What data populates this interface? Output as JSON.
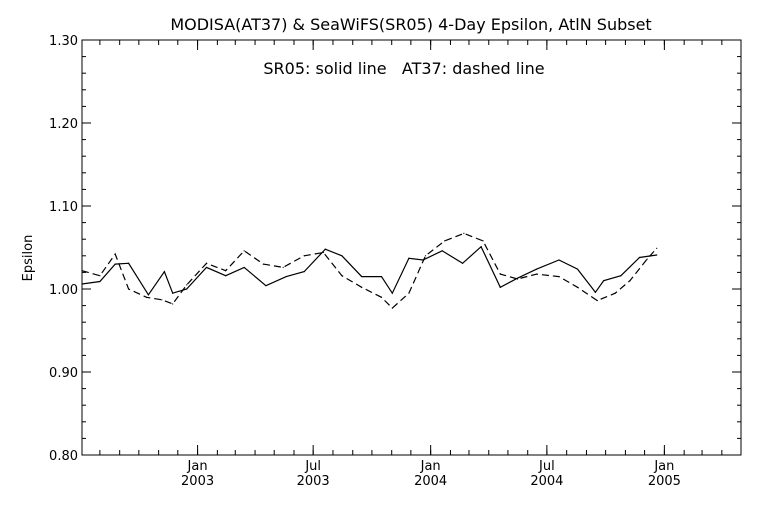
{
  "chart_data": {
    "type": "line",
    "title": "MODISA(AT37) & SeaWiFS(SR05) 4-Day Epsilon, AtlN Subset",
    "annotation": "SR05: solid line   AT37: dashed line",
    "ylabel": "Epsilon",
    "xlabel": "",
    "ylim": [
      0.8,
      1.3
    ],
    "y_ticks": [
      "0.80",
      "0.90",
      "1.00",
      "1.10",
      "1.20",
      "1.30"
    ],
    "xlim": [
      "2002-07-04",
      "2005-05-01"
    ],
    "x_ticks": [
      {
        "date": "2003-01-01",
        "month": "Jan",
        "year": "2003"
      },
      {
        "date": "2003-07-01",
        "month": "Jul",
        "year": "2003"
      },
      {
        "date": "2004-01-01",
        "month": "Jan",
        "year": "2004"
      },
      {
        "date": "2004-07-01",
        "month": "Jul",
        "year": "2004"
      },
      {
        "date": "2005-01-01",
        "month": "Jan",
        "year": "2005"
      }
    ],
    "grid": false,
    "legend": "none",
    "series": [
      {
        "name": "SR05",
        "style": "solid",
        "color": "#000000",
        "points": [
          [
            "2002-07-04",
            1.006
          ],
          [
            "2002-08-01",
            1.009
          ],
          [
            "2002-08-25",
            1.03
          ],
          [
            "2002-09-15",
            1.031
          ],
          [
            "2002-10-16",
            0.993
          ],
          [
            "2002-11-10",
            1.021
          ],
          [
            "2002-11-23",
            0.995
          ],
          [
            "2002-12-15",
            1.0
          ],
          [
            "2003-01-15",
            1.026
          ],
          [
            "2003-02-14",
            1.016
          ],
          [
            "2003-03-15",
            1.026
          ],
          [
            "2003-04-18",
            1.004
          ],
          [
            "2003-05-20",
            1.015
          ],
          [
            "2003-06-17",
            1.021
          ],
          [
            "2003-07-20",
            1.048
          ],
          [
            "2003-08-15",
            1.04
          ],
          [
            "2003-09-15",
            1.015
          ],
          [
            "2003-10-16",
            1.015
          ],
          [
            "2003-11-02",
            0.995
          ],
          [
            "2003-11-28",
            1.037
          ],
          [
            "2003-12-20",
            1.035
          ],
          [
            "2004-01-19",
            1.046
          ],
          [
            "2004-02-20",
            1.031
          ],
          [
            "2004-03-20",
            1.051
          ],
          [
            "2004-04-19",
            1.002
          ],
          [
            "2004-05-16",
            1.013
          ],
          [
            "2004-06-15",
            1.024
          ],
          [
            "2004-07-20",
            1.035
          ],
          [
            "2004-08-18",
            1.024
          ],
          [
            "2004-09-15",
            0.996
          ],
          [
            "2004-09-28",
            1.01
          ],
          [
            "2004-10-25",
            1.016
          ],
          [
            "2004-11-23",
            1.038
          ],
          [
            "2004-12-20",
            1.041
          ]
        ]
      },
      {
        "name": "AT37",
        "style": "dashed",
        "color": "#000000",
        "points": [
          [
            "2002-07-04",
            1.022
          ],
          [
            "2002-08-01",
            1.016
          ],
          [
            "2002-08-25",
            1.042
          ],
          [
            "2002-09-15",
            1.0
          ],
          [
            "2002-10-13",
            0.99
          ],
          [
            "2002-11-06",
            0.987
          ],
          [
            "2002-11-23",
            0.982
          ],
          [
            "2002-12-15",
            1.005
          ],
          [
            "2003-01-15",
            1.031
          ],
          [
            "2003-02-14",
            1.022
          ],
          [
            "2003-03-15",
            1.046
          ],
          [
            "2003-04-14",
            1.03
          ],
          [
            "2003-05-15",
            1.026
          ],
          [
            "2003-06-17",
            1.04
          ],
          [
            "2003-07-17",
            1.044
          ],
          [
            "2003-08-15",
            1.016
          ],
          [
            "2003-09-15",
            1.002
          ],
          [
            "2003-10-16",
            0.99
          ],
          [
            "2003-11-02",
            0.977
          ],
          [
            "2003-11-28",
            0.995
          ],
          [
            "2003-12-24",
            1.04
          ],
          [
            "2004-01-23",
            1.058
          ],
          [
            "2004-02-22",
            1.067
          ],
          [
            "2004-03-23",
            1.058
          ],
          [
            "2004-04-19",
            1.018
          ],
          [
            "2004-05-16",
            1.012
          ],
          [
            "2004-06-15",
            1.018
          ],
          [
            "2004-07-20",
            1.015
          ],
          [
            "2004-08-18",
            1.002
          ],
          [
            "2004-09-18",
            0.986
          ],
          [
            "2004-10-16",
            0.995
          ],
          [
            "2004-11-08",
            1.01
          ],
          [
            "2004-12-05",
            1.036
          ],
          [
            "2004-12-20",
            1.049
          ]
        ]
      }
    ]
  }
}
